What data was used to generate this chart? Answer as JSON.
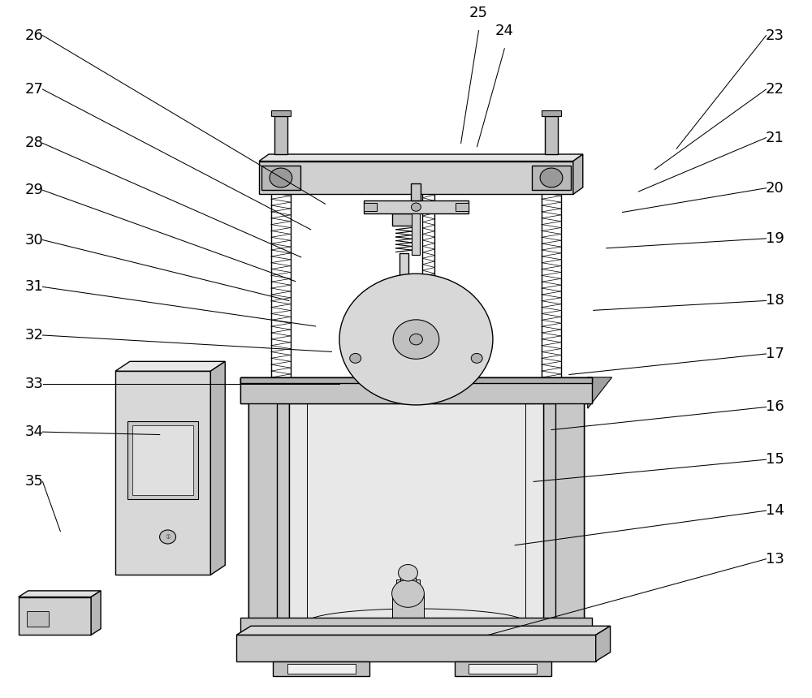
{
  "bg": "#ffffff",
  "lc": "#000000",
  "g1": "#e8e8e8",
  "g2": "#d0d0d0",
  "g3": "#b8b8b8",
  "g4": "#a0a0a0",
  "lfs": 13,
  "lw": 1.0,
  "labels_left": [
    {
      "n": "26",
      "xl": 0.028,
      "yl": 0.956,
      "xa": 0.4,
      "ya": 0.712
    },
    {
      "n": "27",
      "xl": 0.028,
      "yl": 0.878,
      "xa": 0.382,
      "ya": 0.675
    },
    {
      "n": "28",
      "xl": 0.028,
      "yl": 0.8,
      "xa": 0.37,
      "ya": 0.635
    },
    {
      "n": "29",
      "xl": 0.028,
      "yl": 0.732,
      "xa": 0.363,
      "ya": 0.6
    },
    {
      "n": "30",
      "xl": 0.028,
      "yl": 0.66,
      "xa": 0.355,
      "ya": 0.572
    },
    {
      "n": "31",
      "xl": 0.028,
      "yl": 0.592,
      "xa": 0.388,
      "ya": 0.535
    },
    {
      "n": "32",
      "xl": 0.028,
      "yl": 0.522,
      "xa": 0.408,
      "ya": 0.498
    },
    {
      "n": "33",
      "xl": 0.028,
      "yl": 0.452,
      "xa": 0.418,
      "ya": 0.452
    },
    {
      "n": "34",
      "xl": 0.028,
      "yl": 0.382,
      "xa": 0.195,
      "ya": 0.378
    },
    {
      "n": "35",
      "xl": 0.028,
      "yl": 0.31,
      "xa": 0.072,
      "ya": 0.238
    }
  ],
  "labels_right": [
    {
      "n": "23",
      "xl": 0.968,
      "yl": 0.956,
      "xa": 0.835,
      "ya": 0.792
    },
    {
      "n": "22",
      "xl": 0.968,
      "yl": 0.878,
      "xa": 0.808,
      "ya": 0.762
    },
    {
      "n": "21",
      "xl": 0.968,
      "yl": 0.808,
      "xa": 0.788,
      "ya": 0.73
    },
    {
      "n": "20",
      "xl": 0.968,
      "yl": 0.735,
      "xa": 0.768,
      "ya": 0.7
    },
    {
      "n": "19",
      "xl": 0.968,
      "yl": 0.662,
      "xa": 0.748,
      "ya": 0.648
    },
    {
      "n": "18",
      "xl": 0.968,
      "yl": 0.572,
      "xa": 0.732,
      "ya": 0.558
    },
    {
      "n": "17",
      "xl": 0.968,
      "yl": 0.495,
      "xa": 0.702,
      "ya": 0.465
    },
    {
      "n": "16",
      "xl": 0.968,
      "yl": 0.418,
      "xa": 0.68,
      "ya": 0.385
    },
    {
      "n": "15",
      "xl": 0.968,
      "yl": 0.342,
      "xa": 0.658,
      "ya": 0.31
    },
    {
      "n": "14",
      "xl": 0.968,
      "yl": 0.268,
      "xa": 0.635,
      "ya": 0.218
    },
    {
      "n": "13",
      "xl": 0.968,
      "yl": 0.198,
      "xa": 0.602,
      "ya": 0.088
    }
  ],
  "labels_top": [
    {
      "n": "25",
      "xl": 0.59,
      "yl": 0.978,
      "xa": 0.568,
      "ya": 0.8
    },
    {
      "n": "24",
      "xl": 0.622,
      "yl": 0.952,
      "xa": 0.588,
      "ya": 0.795
    }
  ]
}
